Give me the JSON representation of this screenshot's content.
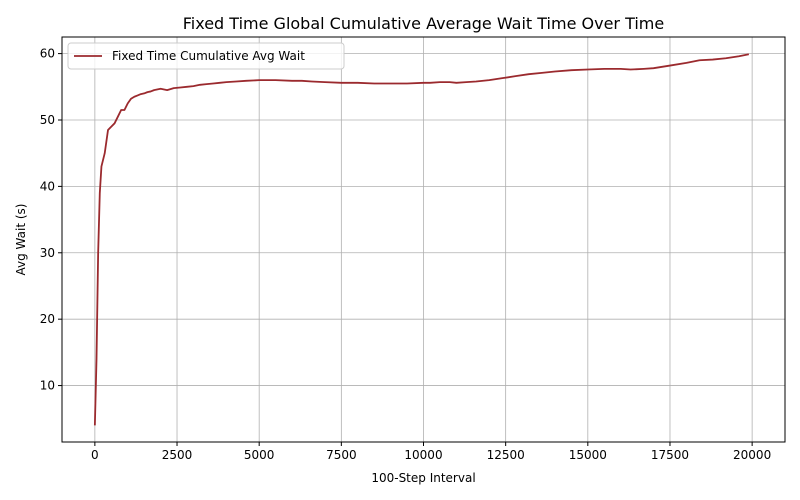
{
  "chart_data": {
    "type": "line",
    "title": "Fixed Time Global Cumulative Average Wait Time Over Time",
    "xlabel": "100-Step Interval",
    "ylabel": "Avg Wait (s)",
    "xlim": [
      -1000,
      21000
    ],
    "ylim": [
      1.5,
      62.5
    ],
    "xticks": [
      0,
      2500,
      5000,
      7500,
      10000,
      12500,
      15000,
      17500,
      20000
    ],
    "yticks": [
      10,
      20,
      30,
      40,
      50,
      60
    ],
    "grid": true,
    "legend_position": "top-left",
    "series": [
      {
        "name": "Fixed Time Cumulative Avg Wait",
        "color": "#9b2a2e",
        "x": [
          0,
          50,
          100,
          150,
          200,
          300,
          400,
          500,
          600,
          700,
          800,
          900,
          1000,
          1100,
          1200,
          1300,
          1400,
          1500,
          1600,
          1700,
          1800,
          2000,
          2200,
          2400,
          2600,
          2800,
          3000,
          3200,
          3400,
          3600,
          3800,
          4000,
          4300,
          4600,
          5000,
          5500,
          6000,
          6300,
          6600,
          7000,
          7500,
          8000,
          8500,
          9000,
          9500,
          10000,
          10200,
          10500,
          10800,
          11000,
          11300,
          11600,
          12000,
          12400,
          12800,
          13200,
          13600,
          14000,
          14500,
          15000,
          15500,
          16000,
          16300,
          16700,
          17000,
          17500,
          18000,
          18400,
          18800,
          19200,
          19600,
          19900
        ],
        "y": [
          4,
          14,
          30,
          39,
          43,
          45,
          48.5,
          49,
          49.5,
          50.5,
          51.5,
          51.5,
          52.5,
          53.2,
          53.5,
          53.7,
          53.9,
          54,
          54.2,
          54.3,
          54.5,
          54.7,
          54.5,
          54.8,
          54.9,
          55.0,
          55.1,
          55.3,
          55.4,
          55.5,
          55.6,
          55.7,
          55.8,
          55.9,
          56.0,
          56.0,
          55.9,
          55.9,
          55.8,
          55.7,
          55.6,
          55.6,
          55.5,
          55.5,
          55.5,
          55.6,
          55.6,
          55.7,
          55.7,
          55.6,
          55.7,
          55.8,
          56.0,
          56.3,
          56.6,
          56.9,
          57.1,
          57.3,
          57.5,
          57.6,
          57.7,
          57.7,
          57.6,
          57.7,
          57.8,
          58.2,
          58.6,
          59.0,
          59.1,
          59.3,
          59.6,
          59.9
        ]
      }
    ]
  }
}
